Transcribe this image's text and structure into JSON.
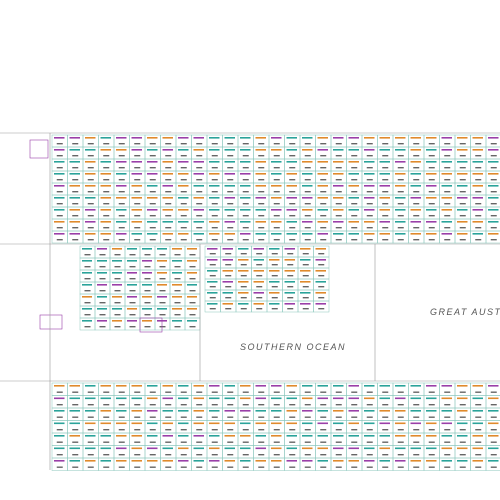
{
  "labels": {
    "sea": "GREAT AUSTRALIAN",
    "ocean": "SOUTHERN OCEAN"
  }
}
